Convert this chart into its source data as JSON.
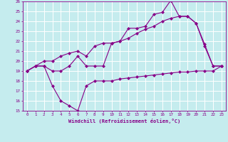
{
  "xlabel": "Windchill (Refroidissement éolien,°C)",
  "xlim": [
    -0.5,
    23.5
  ],
  "ylim": [
    15,
    26
  ],
  "xticks": [
    0,
    1,
    2,
    3,
    4,
    5,
    6,
    7,
    8,
    9,
    10,
    11,
    12,
    13,
    14,
    15,
    16,
    17,
    18,
    19,
    20,
    21,
    22,
    23
  ],
  "yticks": [
    15,
    16,
    17,
    18,
    19,
    20,
    21,
    22,
    23,
    24,
    25,
    26
  ],
  "background_color": "#c5ecee",
  "line_color": "#880088",
  "grid_color": "#ffffff",
  "line1_x": [
    0,
    1,
    2,
    3,
    4,
    5,
    6,
    7,
    8,
    9,
    10,
    11,
    12,
    13,
    14,
    15,
    16,
    17,
    18,
    19,
    20,
    21,
    22,
    23
  ],
  "line1_y": [
    19.0,
    19.5,
    19.5,
    17.5,
    16.0,
    15.5,
    15.0,
    17.5,
    18.0,
    18.0,
    18.0,
    18.2,
    18.3,
    18.4,
    18.5,
    18.6,
    18.7,
    18.8,
    18.9,
    18.9,
    19.0,
    19.0,
    19.0,
    19.5
  ],
  "line2_x": [
    0,
    1,
    2,
    3,
    4,
    5,
    6,
    7,
    8,
    9,
    10,
    11,
    12,
    13,
    14,
    15,
    16,
    17,
    18,
    19,
    20,
    21,
    22,
    23
  ],
  "line2_y": [
    19.0,
    19.5,
    19.5,
    19.0,
    19.0,
    19.5,
    20.5,
    19.5,
    19.5,
    19.5,
    21.8,
    22.0,
    23.3,
    23.3,
    23.5,
    24.7,
    24.9,
    26.1,
    24.5,
    24.5,
    23.8,
    21.5,
    19.5,
    19.5
  ],
  "line3_x": [
    0,
    1,
    2,
    3,
    4,
    5,
    6,
    7,
    8,
    9,
    10,
    11,
    12,
    13,
    14,
    15,
    16,
    17,
    18,
    19,
    20,
    21,
    22,
    23
  ],
  "line3_y": [
    19.0,
    19.5,
    20.0,
    20.0,
    20.5,
    20.8,
    21.0,
    20.5,
    21.5,
    21.8,
    21.8,
    22.0,
    22.3,
    22.8,
    23.2,
    23.5,
    24.0,
    24.3,
    24.5,
    24.5,
    23.8,
    21.7,
    19.5,
    19.5
  ]
}
